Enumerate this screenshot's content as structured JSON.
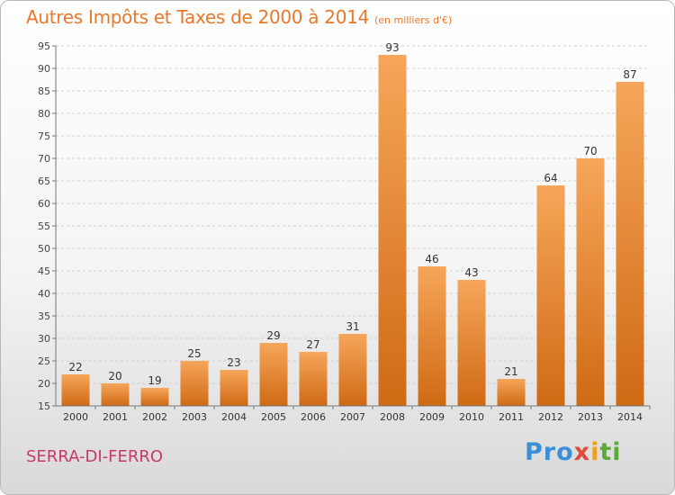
{
  "header": {
    "title": "Autres Impôts et Taxes de 2000 à 2014",
    "subtitle": "(en milliers d'€)"
  },
  "footer": {
    "commune": "SERRA-DI-FERRO",
    "logo": {
      "p1": "Pro",
      "p2": "x",
      "p3": "i",
      "p4": "ti"
    }
  },
  "chart_data": {
    "type": "bar",
    "title": "Autres Impôts et Taxes de 2000 à 2014",
    "subtitle": "(en milliers d'€)",
    "xlabel": "",
    "ylabel": "",
    "categories": [
      "2000",
      "2001",
      "2002",
      "2003",
      "2004",
      "2005",
      "2006",
      "2007",
      "2008",
      "2009",
      "2010",
      "2011",
      "2012",
      "2013",
      "2014"
    ],
    "values": [
      22,
      20,
      19,
      25,
      23,
      29,
      27,
      31,
      93,
      46,
      43,
      21,
      64,
      70,
      87
    ],
    "ylim": [
      15,
      95
    ],
    "yticks": [
      15,
      20,
      25,
      30,
      35,
      40,
      45,
      50,
      55,
      60,
      65,
      70,
      75,
      80,
      85,
      90,
      95
    ],
    "grid": "horizontal dashed",
    "bar_color_top": "#f6a65a",
    "bar_color_bottom": "#cf6a14",
    "data_labels": true
  }
}
